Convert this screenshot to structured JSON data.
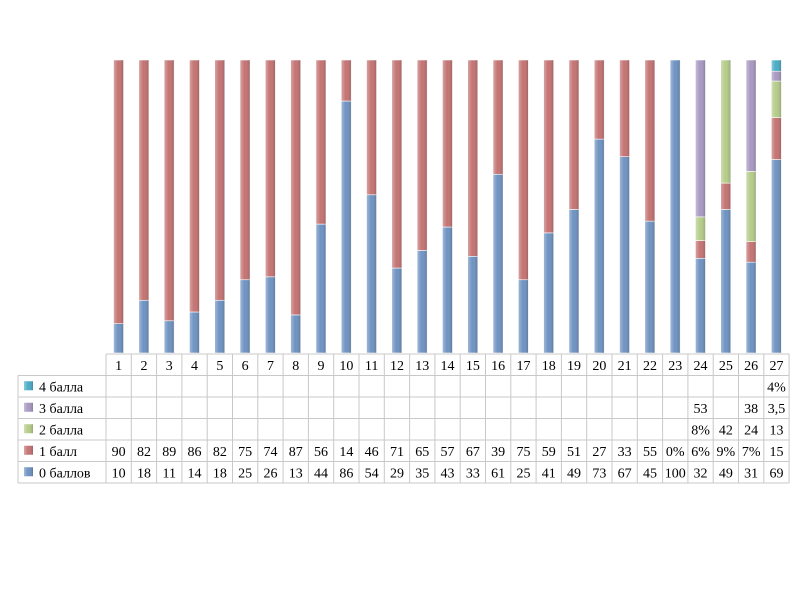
{
  "chart_data": {
    "type": "bar",
    "stacked": true,
    "percent_stacked": true,
    "categories": [
      "1",
      "2",
      "3",
      "4",
      "5",
      "6",
      "7",
      "8",
      "9",
      "10",
      "11",
      "12",
      "13",
      "14",
      "15",
      "16",
      "17",
      "18",
      "19",
      "20",
      "21",
      "22",
      "23",
      "24",
      "25",
      "26",
      "27"
    ],
    "series": [
      {
        "name": "0 баллов",
        "color": "#6f93c2",
        "values": [
          10,
          18,
          11,
          14,
          18,
          25,
          26,
          13,
          44,
          86,
          54,
          29,
          35,
          43,
          33,
          61,
          25,
          41,
          49,
          73,
          67,
          45,
          100,
          32,
          49,
          31,
          69
        ],
        "labels": [
          "10",
          "18",
          "11",
          "14",
          "18",
          "25",
          "26",
          "13",
          "44",
          "86",
          "54",
          "29",
          "35",
          "43",
          "33",
          "61",
          "25",
          "41",
          "49",
          "73",
          "67",
          "45",
          "100",
          "32",
          "49",
          "31",
          "69"
        ]
      },
      {
        "name": "1 балл",
        "color": "#c47473",
        "values": [
          90,
          82,
          89,
          86,
          82,
          75,
          74,
          87,
          56,
          14,
          46,
          71,
          65,
          57,
          67,
          39,
          75,
          59,
          51,
          27,
          33,
          55,
          0,
          6,
          9,
          7,
          15
        ],
        "labels": [
          "90",
          "82",
          "89",
          "86",
          "82",
          "75",
          "74",
          "87",
          "56",
          "14",
          "46",
          "71",
          "65",
          "57",
          "67",
          "39",
          "75",
          "59",
          "51",
          "27",
          "33",
          "55",
          "0%",
          "6%",
          "9%",
          "7%",
          "15"
        ]
      },
      {
        "name": "2 балла",
        "color": "#b5cc8a",
        "values": [
          null,
          null,
          null,
          null,
          null,
          null,
          null,
          null,
          null,
          null,
          null,
          null,
          null,
          null,
          null,
          null,
          null,
          null,
          null,
          null,
          null,
          null,
          null,
          8,
          42,
          24,
          13
        ],
        "labels": [
          "",
          "",
          "",
          "",
          "",
          "",
          "",
          "",
          "",
          "",
          "",
          "",
          "",
          "",
          "",
          "",
          "",
          "",
          "",
          "",
          "",
          "",
          "",
          "8%",
          "42",
          "24",
          "13"
        ]
      },
      {
        "name": "3 балла",
        "color": "#a899c2",
        "values": [
          null,
          null,
          null,
          null,
          null,
          null,
          null,
          null,
          null,
          null,
          null,
          null,
          null,
          null,
          null,
          null,
          null,
          null,
          null,
          null,
          null,
          null,
          null,
          53,
          null,
          38,
          3.5
        ],
        "labels": [
          "",
          "",
          "",
          "",
          "",
          "",
          "",
          "",
          "",
          "",
          "",
          "",
          "",
          "",
          "",
          "",
          "",
          "",
          "",
          "",
          "",
          "",
          "",
          "53",
          "",
          "38",
          "3,5"
        ]
      },
      {
        "name": "4 балла",
        "color": "#4bacc6",
        "values": [
          null,
          null,
          null,
          null,
          null,
          null,
          null,
          null,
          null,
          null,
          null,
          null,
          null,
          null,
          null,
          null,
          null,
          null,
          null,
          null,
          null,
          null,
          null,
          null,
          null,
          null,
          4
        ],
        "labels": [
          "",
          "",
          "",
          "",
          "",
          "",
          "",
          "",
          "",
          "",
          "",
          "",
          "",
          "",
          "",
          "",
          "",
          "",
          "",
          "",
          "",
          "",
          "",
          "",
          "",
          "",
          "4%"
        ]
      }
    ],
    "legend_placement": "left of data table",
    "data_table": true,
    "grid": false
  }
}
